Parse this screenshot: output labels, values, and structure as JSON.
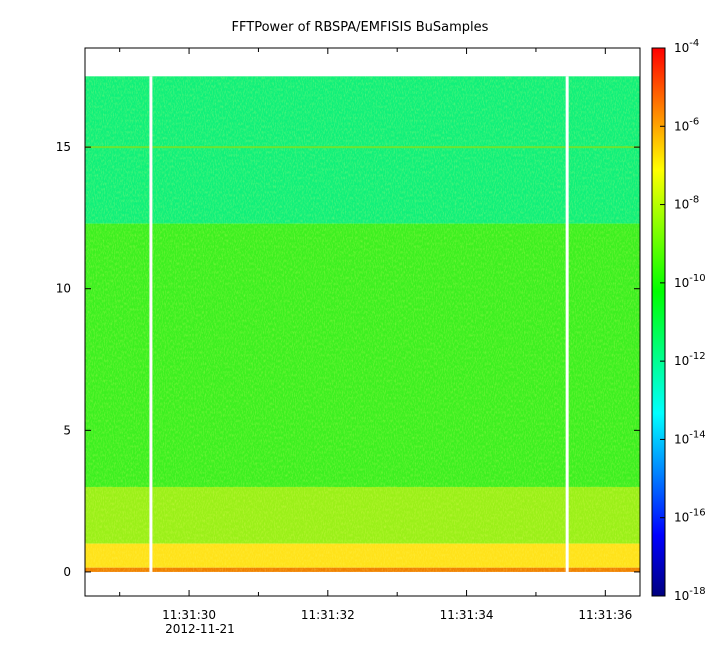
{
  "chart_data": {
    "type": "heatmap",
    "title": "FFTPower of RBSPA/EMFISIS  BuSamples",
    "xlabel": "",
    "ylabel": "",
    "x_axis": {
      "range_seconds_of_minute": [
        28.5,
        36.5
      ],
      "ticks": [
        {
          "label": "11:31:30",
          "sublabel": "2012-11-21",
          "value": 30
        },
        {
          "label": "11:31:32",
          "value": 32
        },
        {
          "label": "11:31:34",
          "value": 34
        },
        {
          "label": "11:31:36",
          "value": 36
        }
      ],
      "minor_ticks": [
        29,
        31,
        33,
        35
      ]
    },
    "y_axis": {
      "range": [
        -0.85,
        18.5
      ],
      "ticks": [
        {
          "label": "0",
          "value": 0
        },
        {
          "label": "5",
          "value": 5
        },
        {
          "label": "10",
          "value": 10
        },
        {
          "label": "15",
          "value": 15
        }
      ]
    },
    "colorbar": {
      "scale": "log",
      "range_exponent": [
        -18,
        -4
      ],
      "ticks": [
        {
          "base": "10",
          "exp": "-4",
          "value": -4
        },
        {
          "base": "10",
          "exp": "-6",
          "value": -6
        },
        {
          "base": "10",
          "exp": "-8",
          "value": -8
        },
        {
          "base": "10",
          "exp": "-10",
          "value": -10
        },
        {
          "base": "10",
          "exp": "-12",
          "value": -12
        },
        {
          "base": "10",
          "exp": "-14",
          "value": -14
        },
        {
          "base": "10",
          "exp": "-16",
          "value": -16
        },
        {
          "base": "10",
          "exp": "-18",
          "value": -18
        }
      ],
      "colors": [
        "#00007f",
        "#0000ff",
        "#0080ff",
        "#00ffff",
        "#00ff80",
        "#00ff00",
        "#80ff00",
        "#ffff00",
        "#ff8000",
        "#ff0000"
      ]
    },
    "data_extent": {
      "y_max": 17.5,
      "y_min": 0
    },
    "bands": [
      {
        "y_from": 12.3,
        "y_to": 17.5,
        "log10_power": -11.6,
        "color": "#10f07a"
      },
      {
        "y_from": 3.0,
        "y_to": 12.3,
        "log10_power": -10.2,
        "color": "#3cf020"
      },
      {
        "y_from": 1.0,
        "y_to": 3.0,
        "log10_power": -9.4,
        "color": "#9af018"
      },
      {
        "y_from": 0.15,
        "y_to": 1.0,
        "log10_power": -8.2,
        "color": "#ffe21a"
      },
      {
        "y_from": 0.0,
        "y_to": 0.15,
        "log10_power": -6.6,
        "color": "#f08000"
      }
    ],
    "line_at_y": 15,
    "data_gaps_at_seconds": [
      29.45,
      35.45
    ]
  }
}
